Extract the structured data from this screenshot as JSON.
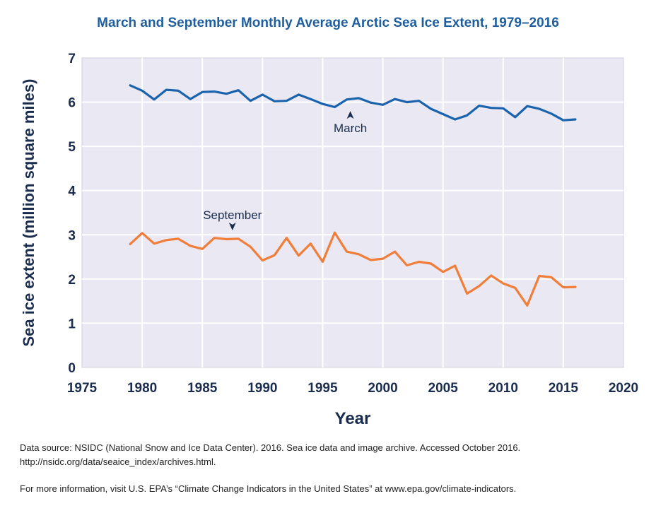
{
  "colors": {
    "march": "#1b63ad",
    "september": "#f07e3a",
    "title": "#1f5fa0",
    "axis_text": "#1a2d4f",
    "plot_bg": "#eae9f3",
    "grid": "#ffffff"
  },
  "footnotes": {
    "source_line1": "Data source: NSIDC (National Snow and Ice Data Center). 2016. Sea ice data and image archive. Accessed October 2016.",
    "source_line2": "http://nsidc.org/data/seaice_index/archives.html.",
    "info": "For more information, visit U.S. EPA’s “Climate Change Indicators in the United States” at www.epa.gov/climate-indicators."
  },
  "chart_data": {
    "type": "line",
    "title": "March and September Monthly Average Arctic Sea Ice Extent, 1979–2016",
    "xlabel": "Year",
    "ylabel": "Sea ice extent (million square miles)",
    "xlim": [
      1975,
      2020
    ],
    "ylim": [
      0,
      7
    ],
    "xticks": [
      1975,
      1980,
      1985,
      1990,
      1995,
      2000,
      2005,
      2010,
      2015,
      2020
    ],
    "yticks": [
      0,
      1,
      2,
      3,
      4,
      5,
      6,
      7
    ],
    "grid": true,
    "legend": "none",
    "x": [
      1979,
      1980,
      1981,
      1982,
      1983,
      1984,
      1985,
      1986,
      1987,
      1988,
      1989,
      1990,
      1991,
      1992,
      1993,
      1994,
      1995,
      1996,
      1997,
      1998,
      1999,
      2000,
      2001,
      2002,
      2003,
      2004,
      2005,
      2006,
      2007,
      2008,
      2009,
      2010,
      2011,
      2012,
      2013,
      2014,
      2015,
      2016
    ],
    "series": [
      {
        "name": "March",
        "values": [
          6.38,
          6.26,
          6.06,
          6.28,
          6.26,
          6.07,
          6.23,
          6.24,
          6.19,
          6.27,
          6.03,
          6.17,
          6.02,
          6.03,
          6.17,
          6.07,
          5.96,
          5.89,
          6.06,
          6.09,
          5.99,
          5.94,
          6.07,
          6.0,
          6.03,
          5.85,
          5.73,
          5.61,
          5.7,
          5.92,
          5.87,
          5.86,
          5.66,
          5.91,
          5.85,
          5.74,
          5.59,
          5.61
        ]
      },
      {
        "name": "September",
        "values": [
          2.79,
          3.04,
          2.8,
          2.88,
          2.91,
          2.75,
          2.68,
          2.93,
          2.9,
          2.91,
          2.73,
          2.42,
          2.54,
          2.93,
          2.53,
          2.8,
          2.39,
          3.05,
          2.62,
          2.56,
          2.43,
          2.46,
          2.62,
          2.31,
          2.39,
          2.35,
          2.16,
          2.3,
          1.67,
          1.84,
          2.08,
          1.9,
          1.8,
          1.4,
          2.07,
          2.04,
          1.81,
          1.82
        ]
      }
    ],
    "annotations": [
      {
        "text": "March",
        "x": 1997.3,
        "y": 5.8,
        "arrow": "up"
      },
      {
        "text": "September",
        "x": 1987.5,
        "y": 3.1,
        "arrow": "down"
      }
    ]
  }
}
